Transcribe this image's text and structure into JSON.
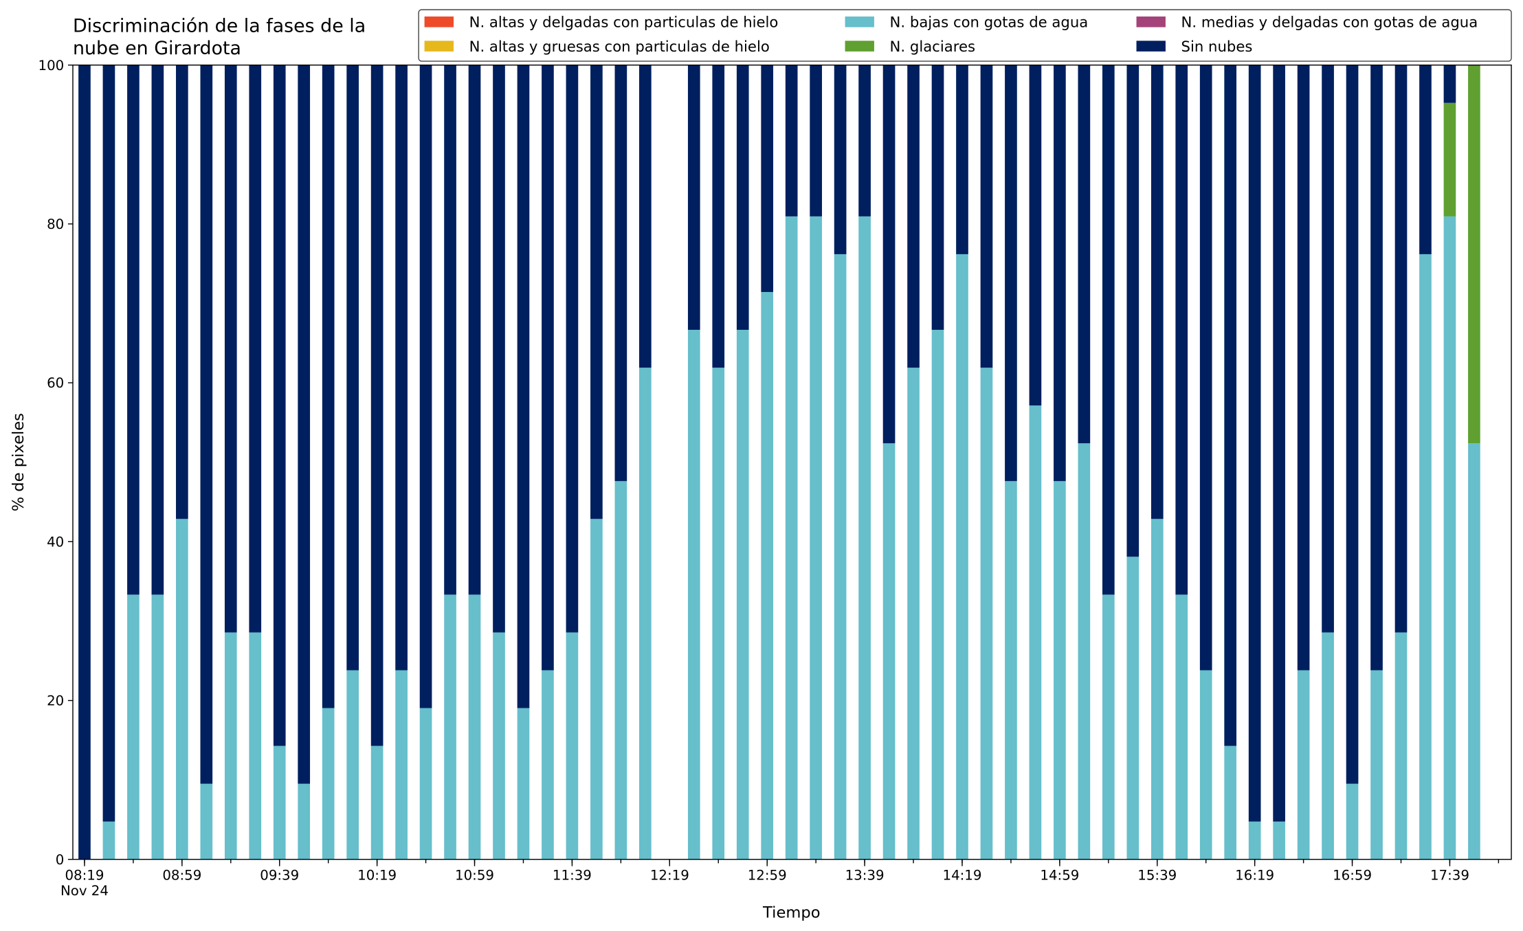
{
  "chart_data": {
    "type": "stacked_bar",
    "title": "Discriminación de la fases de la nube en Girardota",
    "x_label": "Tiempo",
    "y_label": "% de pixeles",
    "x_date_label": "Nov 24",
    "categories": [
      "08:19",
      null,
      null,
      null,
      "08:59",
      null,
      null,
      null,
      "09:39",
      null,
      null,
      null,
      "10:19",
      null,
      null,
      null,
      "10:59",
      null,
      null,
      null,
      "11:39",
      null,
      null,
      null,
      "12:19",
      null,
      null,
      null,
      "12:59",
      null,
      null,
      null,
      "13:39",
      null,
      null,
      null,
      "14:19",
      null,
      null,
      null,
      "14:59",
      null,
      null,
      null,
      "15:39",
      null,
      null,
      null,
      "16:19",
      null,
      null,
      null,
      "16:59",
      null,
      null,
      null,
      "17:39",
      null
    ],
    "ylim": [
      0,
      100
    ],
    "yticks": [
      0,
      20,
      40,
      60,
      80,
      100
    ],
    "legend": "top-right",
    "series": [
      {
        "name": "N. altas y delgadas con particulas de hielo",
        "color": "#ee4b2b",
        "values": [
          0,
          0,
          0,
          0,
          0,
          0,
          0,
          0,
          0,
          0,
          0,
          0,
          0,
          0,
          0,
          0,
          0,
          0,
          0,
          0,
          0,
          0,
          0,
          0,
          null,
          0,
          0,
          0,
          0,
          0,
          0,
          0,
          0,
          0,
          0,
          0,
          0,
          0,
          0,
          0,
          0,
          0,
          0,
          0,
          0,
          0,
          0,
          0,
          0,
          0,
          0,
          0,
          0,
          0,
          0,
          0,
          0,
          0
        ]
      },
      {
        "name": "N. altas y gruesas con particulas de hielo",
        "color": "#e6b81c",
        "values": [
          0,
          0,
          0,
          0,
          0,
          0,
          0,
          0,
          0,
          0,
          0,
          0,
          0,
          0,
          0,
          0,
          0,
          0,
          0,
          0,
          0,
          0,
          0,
          0,
          null,
          0,
          0,
          0,
          0,
          0,
          0,
          0,
          0,
          0,
          0,
          0,
          0,
          0,
          0,
          0,
          0,
          0,
          0,
          0,
          0,
          0,
          0,
          0,
          0,
          0,
          0,
          0,
          0,
          0,
          0,
          0,
          0,
          0
        ]
      },
      {
        "name": "N. bajas con gotas de agua",
        "color": "#66bfcb",
        "values": [
          0,
          4.76,
          33.33,
          33.33,
          42.86,
          9.52,
          28.57,
          28.57,
          14.29,
          9.52,
          19.05,
          23.81,
          14.29,
          23.81,
          19.05,
          33.33,
          33.33,
          28.57,
          19.05,
          23.81,
          28.57,
          42.86,
          47.62,
          61.9,
          null,
          66.67,
          61.9,
          66.67,
          71.43,
          80.95,
          80.95,
          76.19,
          80.95,
          52.38,
          61.9,
          66.67,
          76.19,
          61.9,
          47.62,
          57.14,
          47.62,
          52.38,
          33.33,
          38.1,
          42.86,
          33.33,
          23.81,
          14.29,
          4.76,
          4.76,
          23.81,
          28.57,
          9.52,
          23.81,
          28.57,
          76.19,
          80.95,
          52.38
        ]
      },
      {
        "name": "N. glaciares",
        "color": "#5fa030",
        "values": [
          0,
          0,
          0,
          0,
          0,
          0,
          0,
          0,
          0,
          0,
          0,
          0,
          0,
          0,
          0,
          0,
          0,
          0,
          0,
          0,
          0,
          0,
          0,
          0,
          null,
          0,
          0,
          0,
          0,
          0,
          0,
          0,
          0,
          0,
          0,
          0,
          0,
          0,
          0,
          0,
          0,
          0,
          0,
          0,
          0,
          0,
          0,
          0,
          0,
          0,
          0,
          0,
          0,
          0,
          0,
          0,
          14.29,
          47.62
        ]
      },
      {
        "name": "N. medias y delgadas con gotas de agua",
        "color": "#a4437a",
        "values": [
          0,
          0,
          0,
          0,
          0,
          0,
          0,
          0,
          0,
          0,
          0,
          0,
          0,
          0,
          0,
          0,
          0,
          0,
          0,
          0,
          0,
          0,
          0,
          0,
          null,
          0,
          0,
          0,
          0,
          0,
          0,
          0,
          0,
          0,
          0,
          0,
          0,
          0,
          0,
          0,
          0,
          0,
          0,
          0,
          0,
          0,
          0,
          0,
          0,
          0,
          0,
          0,
          0,
          0,
          0,
          0,
          0,
          0
        ]
      },
      {
        "name": "Sin nubes",
        "color": "#001f5f",
        "values": [
          100,
          95.24,
          66.67,
          66.67,
          57.14,
          90.48,
          71.43,
          71.43,
          85.71,
          90.48,
          80.95,
          76.19,
          85.71,
          76.19,
          80.95,
          66.67,
          66.67,
          71.43,
          80.95,
          76.19,
          71.43,
          57.14,
          52.38,
          38.1,
          null,
          33.33,
          38.1,
          33.33,
          28.57,
          19.05,
          19.05,
          23.81,
          19.05,
          47.62,
          38.1,
          33.33,
          23.81,
          38.1,
          52.38,
          42.86,
          52.38,
          47.62,
          66.67,
          61.9,
          57.14,
          66.67,
          76.19,
          85.71,
          95.24,
          95.24,
          76.19,
          71.43,
          90.48,
          76.19,
          71.43,
          23.81,
          4.76,
          0
        ]
      }
    ]
  }
}
